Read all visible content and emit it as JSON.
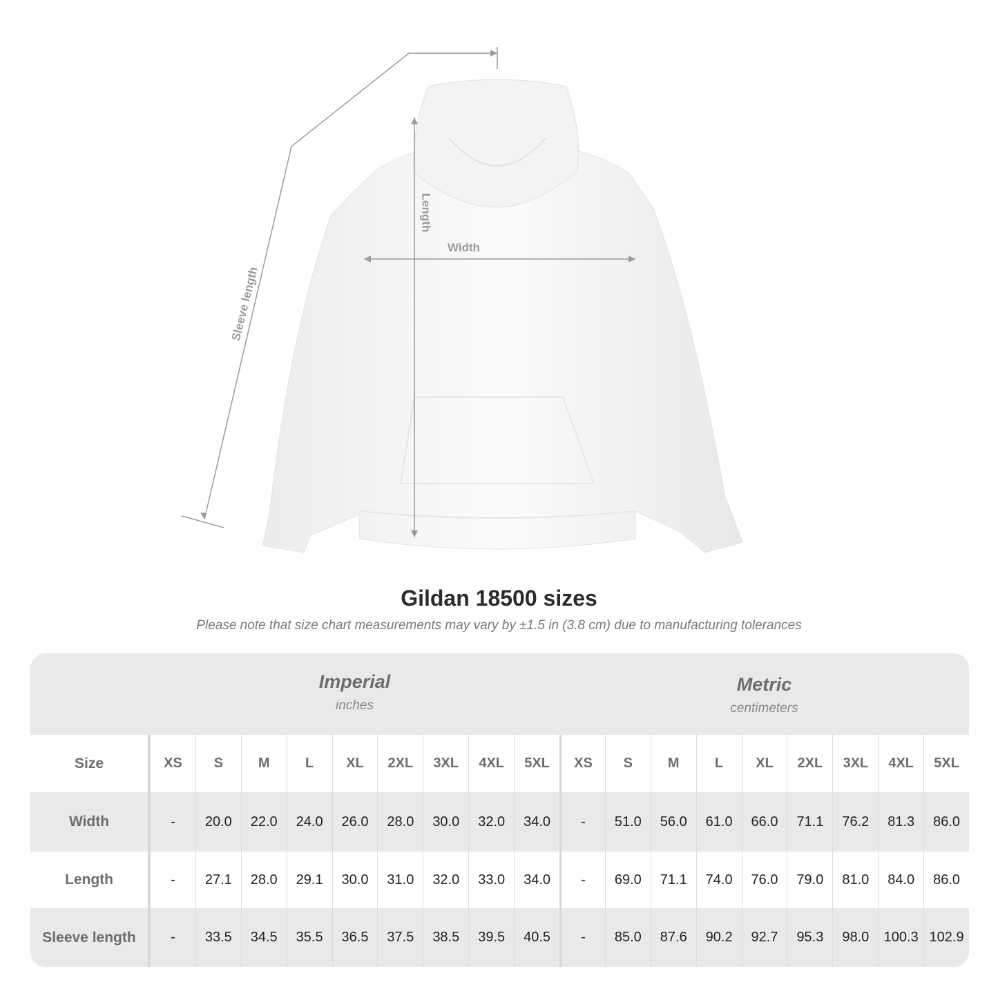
{
  "diagram": {
    "sleeve_label": "Sleeve length",
    "length_label": "Length",
    "width_label": "Width"
  },
  "title": "Gildan 18500 sizes",
  "note": "Please note that size chart measurements may vary by ±1.5 in (3.8 cm) due to manufacturing tolerances",
  "table": {
    "groups": [
      {
        "title": "Imperial",
        "subtitle": "inches"
      },
      {
        "title": "Metric",
        "subtitle": "centimeters"
      }
    ],
    "size_label": "Size",
    "sizes": [
      "XS",
      "S",
      "M",
      "L",
      "XL",
      "2XL",
      "3XL",
      "4XL",
      "5XL"
    ],
    "rows": [
      {
        "label": "Width",
        "imperial": [
          "-",
          "20.0",
          "22.0",
          "24.0",
          "26.0",
          "28.0",
          "30.0",
          "32.0",
          "34.0"
        ],
        "metric": [
          "-",
          "51.0",
          "56.0",
          "61.0",
          "66.0",
          "71.1",
          "76.2",
          "81.3",
          "86.0"
        ]
      },
      {
        "label": "Length",
        "imperial": [
          "-",
          "27.1",
          "28.0",
          "29.1",
          "30.0",
          "31.0",
          "32.0",
          "33.0",
          "34.0"
        ],
        "metric": [
          "-",
          "69.0",
          "71.1",
          "74.0",
          "76.0",
          "79.0",
          "81.0",
          "84.0",
          "86.0"
        ]
      },
      {
        "label": "Sleeve length",
        "imperial": [
          "-",
          "33.5",
          "34.5",
          "35.5",
          "36.5",
          "37.5",
          "38.5",
          "39.5",
          "40.5"
        ],
        "metric": [
          "-",
          "85.0",
          "87.6",
          "90.2",
          "92.7",
          "95.3",
          "98.0",
          "100.3",
          "102.9"
        ]
      }
    ]
  },
  "colors": {
    "panel": "#e9e9e9",
    "header_text": "#6d6d6d",
    "measure_line": "#9a9a9a"
  }
}
